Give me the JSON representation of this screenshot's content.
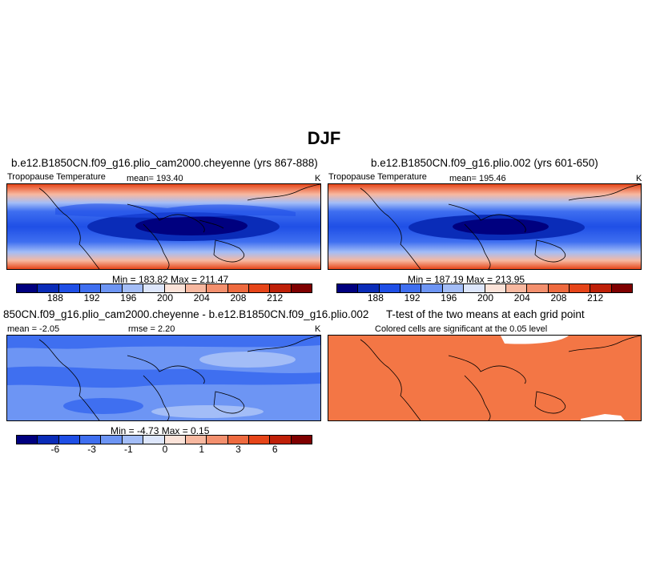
{
  "title": "DJF",
  "panels": [
    {
      "title": "b.e12.B1850CN.f09_g16.plio_cam2000.cheyenne (yrs 867-888)",
      "variable": "Tropopause Temperature",
      "mean_label": "mean= 193.40",
      "units": "K",
      "minmax": "Min = 183.82 Max = 211.47"
    },
    {
      "title": "b.e12.B1850CN.f09_g16.plio.002 (yrs 601-650)",
      "variable": "Tropopause Temperature",
      "mean_label": "mean= 195.46",
      "units": "K",
      "minmax": "Min = 187.19 Max = 213.95"
    },
    {
      "title": "850CN.f09_g16.plio_cam2000.cheyenne - b.e12.B1850CN.f09_g16.plio.002",
      "mean_label": "mean =  -2.05",
      "rmse_label": "rmse =   2.20",
      "units": "K",
      "minmax": "Min =  -4.73 Max =   0.15"
    },
    {
      "title": "T-test of the two means at each grid point",
      "subtitle": "Colored cells are significant at the 0.05 level"
    }
  ],
  "colorbar_abs": {
    "colors": [
      "#00007f",
      "#0a2cb8",
      "#1f4fe6",
      "#3f6ff0",
      "#6d95f4",
      "#a3bdf7",
      "#dde6fb",
      "#fbe3d9",
      "#f7b8a0",
      "#f3906e",
      "#ee6a3f",
      "#e64519",
      "#bf2008",
      "#7f0000"
    ],
    "ticks": [
      "188",
      "192",
      "196",
      "200",
      "204",
      "208",
      "212"
    ]
  },
  "colorbar_diff": {
    "colors": [
      "#00007f",
      "#0a2cb8",
      "#1f4fe6",
      "#3f6ff0",
      "#6d95f4",
      "#a3bdf7",
      "#dde6fb",
      "#fbe3d9",
      "#f7b8a0",
      "#f3906e",
      "#ee6a3f",
      "#e64519",
      "#bf2008",
      "#7f0000"
    ],
    "ticks": [
      "-6",
      "-3",
      "-1",
      "0",
      "1",
      "3",
      "6"
    ]
  },
  "significance_color": "#f37645"
}
